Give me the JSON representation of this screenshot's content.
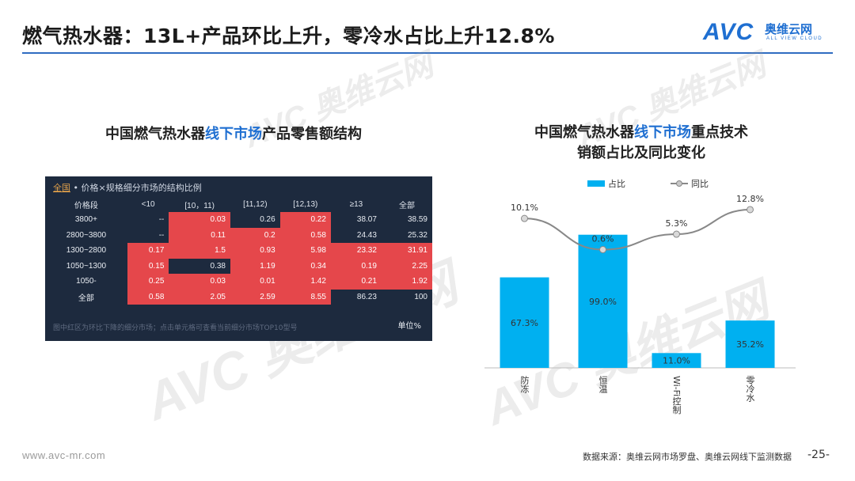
{
  "header": {
    "title": "燃气热水器：13L+产品环比上升，零冷水占比上升12.8%",
    "logo_text": "AVC",
    "logo_cn": "奥维云网",
    "logo_en": "ALL VIEW CLOUD",
    "accent_color": "#1f6fd1"
  },
  "watermark": {
    "text": "AVC 奥维云网",
    "sub": "ALL VIEW CLOUD"
  },
  "left": {
    "title_pre": "中国燃气热水器",
    "title_hl": "线下市场",
    "title_post": "产品零售额结构",
    "panel": {
      "link": "全国",
      "header_text": " • 价格×规格细分市场的结构比例",
      "columns": [
        "价格段",
        "<10",
        "[10，11)",
        "[11,12)",
        "[12,13)",
        "≥13",
        "全部"
      ],
      "rows": [
        {
          "label": "3800+",
          "cells": [
            "--",
            "0.03",
            "0.26",
            "0.22",
            "38.07",
            "38.59"
          ],
          "red": [
            false,
            true,
            false,
            true,
            false,
            false
          ]
        },
        {
          "label": "2800~3800",
          "cells": [
            "--",
            "0.11",
            "0.2",
            "0.58",
            "24.43",
            "25.32"
          ],
          "red": [
            false,
            true,
            true,
            true,
            false,
            false
          ]
        },
        {
          "label": "1300~2800",
          "cells": [
            "0.17",
            "1.5",
            "0.93",
            "5.98",
            "23.32",
            "31.91"
          ],
          "red": [
            true,
            true,
            true,
            true,
            true,
            true
          ]
        },
        {
          "label": "1050~1300",
          "cells": [
            "0.15",
            "0.38",
            "1.19",
            "0.34",
            "0.19",
            "2.25"
          ],
          "red": [
            true,
            false,
            true,
            true,
            true,
            true
          ]
        },
        {
          "label": "1050-",
          "cells": [
            "0.25",
            "0.03",
            "0.01",
            "1.42",
            "0.21",
            "1.92"
          ],
          "red": [
            true,
            true,
            true,
            true,
            true,
            true
          ]
        },
        {
          "label": "全部",
          "cells": [
            "0.58",
            "2.05",
            "2.59",
            "8.55",
            "86.23",
            "100"
          ],
          "red": [
            true,
            true,
            true,
            true,
            false,
            false
          ]
        }
      ],
      "note": "图中红区为环比下降的细分市场；点击单元格可查看当前细分市场TOP10型号",
      "unit": "单位%",
      "highlight_color": "#e5474b",
      "panel_color": "#1d2a3e"
    }
  },
  "right": {
    "title_line1_pre": "中国燃气热水器",
    "title_line1_hl": "线下市场",
    "title_line1_post": "重点技术",
    "title_line2": "销额占比及同比变化",
    "legend_bar": "占比",
    "legend_line": "同比"
  },
  "chart_data": {
    "type": "bar",
    "categories": [
      "防冻",
      "恒温",
      "Wi-Fi控制",
      "零冷水"
    ],
    "series": [
      {
        "name": "占比",
        "kind": "bar",
        "values": [
          67.3,
          99.0,
          11.0,
          35.2
        ],
        "labels": [
          "67.3%",
          "99.0%",
          "11.0%",
          "35.2%"
        ],
        "color": "#00b0f0"
      },
      {
        "name": "同比",
        "kind": "line",
        "values": [
          10.1,
          0.6,
          5.3,
          12.8
        ],
        "labels": [
          "10.1%",
          "0.6%",
          "5.3%",
          "12.8%"
        ],
        "color": "#888888"
      }
    ],
    "title": "中国燃气热水器线下市场重点技术销额占比及同比变化",
    "xlabel": "",
    "ylabel": "",
    "ylim_bar": [
      0,
      100
    ],
    "legend": "top"
  },
  "footer": {
    "url": "www.avc-mr.com",
    "source": "数据来源：奥维云网市场罗盘、奥维云网线下监测数据",
    "page": "-25-"
  }
}
